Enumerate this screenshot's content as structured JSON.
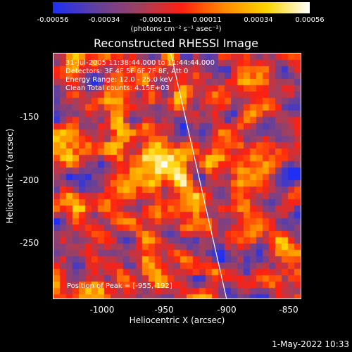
{
  "colorbar": {
    "ticks": [
      "-0.00056",
      "-0.00034",
      "-0.00011",
      "0.00011",
      "0.00034",
      "0.00056"
    ],
    "unit": "(photons cm⁻² s⁻¹ asec⁻²)",
    "colors": [
      "#1f2ff5",
      "#6040a0",
      "#a04060",
      "#ff2010",
      "#ff8a00",
      "#ffd400",
      "#ffffff"
    ]
  },
  "plot": {
    "title": "Reconstructed RHESSI Image",
    "info_lines": [
      "31-Jul-2005 11:38:44.000 to 11:44:44.000",
      "Detectors: 3F 4F 5F 6F 7F 8F, Att 0",
      "Energy Range: 12.0 - 25.0 keV",
      "Clean     Total counts: 4.15E+03"
    ],
    "peak_label": "Position of Peak = [-955,-192]"
  },
  "chart_data": {
    "type": "heatmap",
    "title": "Reconstructed RHESSI Image",
    "xlabel": "Heliocentric X (arcsec)",
    "ylabel": "Heliocentric Y (arcsec)",
    "xlim": [
      -1040,
      -840
    ],
    "ylim": [
      -293,
      -95
    ],
    "x_ticks": [
      "-1000",
      "-950",
      "-900",
      "-850"
    ],
    "y_ticks": [
      "-150",
      "-200",
      "-250"
    ],
    "value_range": [
      -0.00056,
      0.00056
    ],
    "peak": [
      -955,
      -192
    ],
    "limb_line": [
      [
        -945,
        -95
      ],
      [
        -900,
        -293
      ]
    ],
    "grid": false
  },
  "footer": {
    "timestamp": "1-May-2022 10:33"
  }
}
